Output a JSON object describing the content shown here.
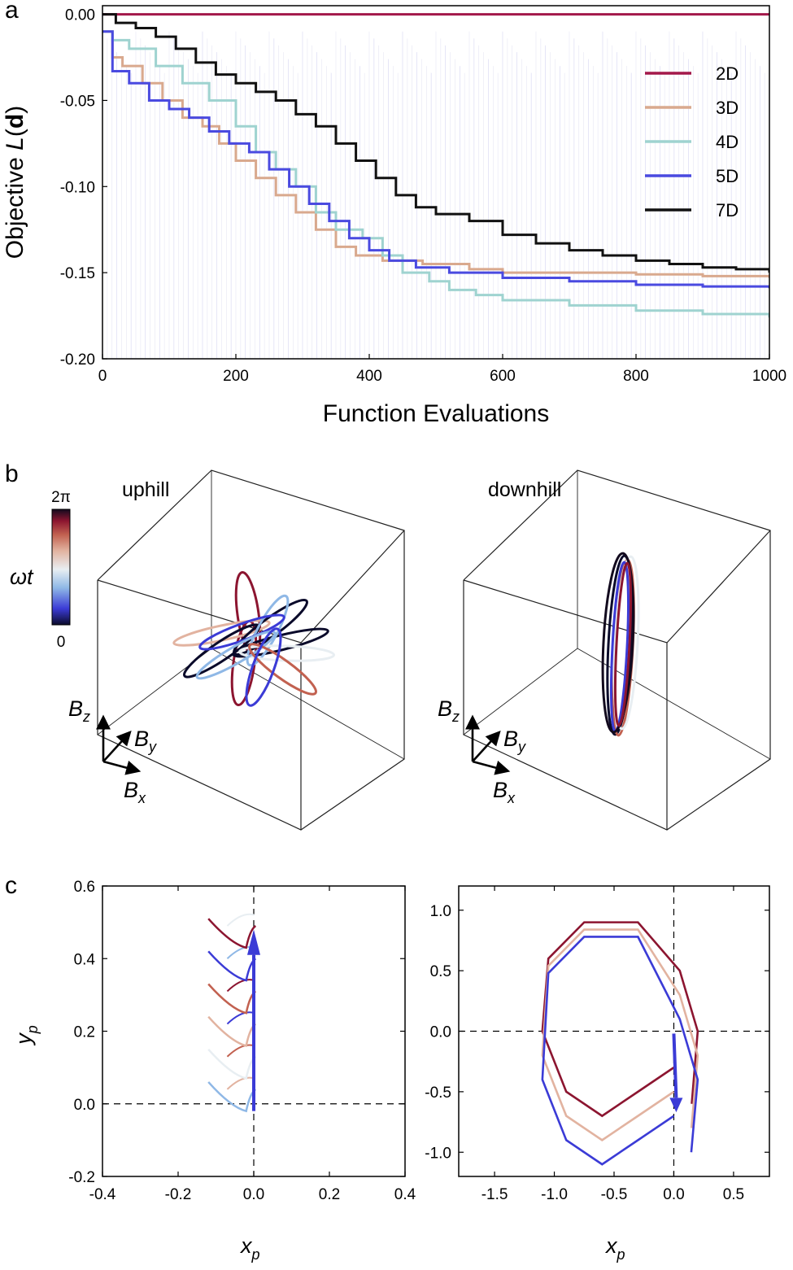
{
  "panel_labels": [
    "a",
    "b",
    "c"
  ],
  "chart_data": [
    {
      "id": "a",
      "type": "line",
      "xlabel": "Function Evaluations",
      "ylabel_main": "Objective ",
      "ylabel_var": "L",
      "ylabel_arg": "d",
      "xlim": [
        0,
        1000
      ],
      "ylim": [
        -0.2,
        0.005
      ],
      "xticks": [
        0,
        200,
        400,
        600,
        800,
        1000
      ],
      "yticks": [
        0.0,
        -0.05,
        -0.1,
        -0.15,
        -0.2
      ],
      "xtick_labels": [
        "0",
        "200",
        "400",
        "600",
        "800",
        "1000"
      ],
      "ytick_labels": [
        "0.00",
        "-0.05",
        "-0.10",
        "-0.15",
        "-0.20"
      ],
      "legend_position": "top-right",
      "series": [
        {
          "name": "2D",
          "color": "#a3184a",
          "points": [
            [
              0,
              0.0
            ],
            [
              1000,
              0.0
            ]
          ]
        },
        {
          "name": "3D",
          "color": "#d9a98e",
          "points": [
            [
              0,
              -0.01
            ],
            [
              15,
              -0.025
            ],
            [
              30,
              -0.03
            ],
            [
              60,
              -0.04
            ],
            [
              90,
              -0.05
            ],
            [
              120,
              -0.06
            ],
            [
              150,
              -0.065
            ],
            [
              175,
              -0.075
            ],
            [
              200,
              -0.085
            ],
            [
              230,
              -0.095
            ],
            [
              260,
              -0.105
            ],
            [
              290,
              -0.115
            ],
            [
              320,
              -0.125
            ],
            [
              350,
              -0.135
            ],
            [
              380,
              -0.14
            ],
            [
              420,
              -0.143
            ],
            [
              480,
              -0.145
            ],
            [
              550,
              -0.148
            ],
            [
              600,
              -0.15
            ],
            [
              700,
              -0.15
            ],
            [
              800,
              -0.151
            ],
            [
              900,
              -0.152
            ],
            [
              1000,
              -0.153
            ]
          ]
        },
        {
          "name": "4D",
          "color": "#9fd3d0",
          "points": [
            [
              0,
              -0.01
            ],
            [
              15,
              -0.015
            ],
            [
              40,
              -0.02
            ],
            [
              80,
              -0.03
            ],
            [
              120,
              -0.04
            ],
            [
              160,
              -0.05
            ],
            [
              200,
              -0.065
            ],
            [
              230,
              -0.08
            ],
            [
              260,
              -0.09
            ],
            [
              290,
              -0.1
            ],
            [
              320,
              -0.115
            ],
            [
              350,
              -0.125
            ],
            [
              390,
              -0.13
            ],
            [
              420,
              -0.14
            ],
            [
              450,
              -0.15
            ],
            [
              490,
              -0.155
            ],
            [
              520,
              -0.16
            ],
            [
              560,
              -0.163
            ],
            [
              600,
              -0.166
            ],
            [
              700,
              -0.169
            ],
            [
              800,
              -0.172
            ],
            [
              900,
              -0.174
            ],
            [
              1000,
              -0.176
            ]
          ]
        },
        {
          "name": "5D",
          "color": "#4a4ae0",
          "points": [
            [
              0,
              -0.01
            ],
            [
              15,
              -0.033
            ],
            [
              40,
              -0.04
            ],
            [
              70,
              -0.05
            ],
            [
              100,
              -0.055
            ],
            [
              130,
              -0.06
            ],
            [
              160,
              -0.068
            ],
            [
              190,
              -0.075
            ],
            [
              220,
              -0.08
            ],
            [
              250,
              -0.09
            ],
            [
              280,
              -0.1
            ],
            [
              310,
              -0.11
            ],
            [
              340,
              -0.12
            ],
            [
              370,
              -0.13
            ],
            [
              400,
              -0.137
            ],
            [
              430,
              -0.143
            ],
            [
              470,
              -0.147
            ],
            [
              520,
              -0.15
            ],
            [
              600,
              -0.153
            ],
            [
              700,
              -0.155
            ],
            [
              800,
              -0.157
            ],
            [
              900,
              -0.158
            ],
            [
              1000,
              -0.159
            ]
          ]
        },
        {
          "name": "7D",
          "color": "#111111",
          "points": [
            [
              0,
              0.0
            ],
            [
              20,
              -0.005
            ],
            [
              50,
              -0.008
            ],
            [
              80,
              -0.013
            ],
            [
              110,
              -0.02
            ],
            [
              140,
              -0.028
            ],
            [
              170,
              -0.035
            ],
            [
              200,
              -0.04
            ],
            [
              230,
              -0.045
            ],
            [
              260,
              -0.05
            ],
            [
              290,
              -0.058
            ],
            [
              320,
              -0.065
            ],
            [
              350,
              -0.075
            ],
            [
              380,
              -0.085
            ],
            [
              410,
              -0.095
            ],
            [
              440,
              -0.105
            ],
            [
              470,
              -0.112
            ],
            [
              500,
              -0.116
            ],
            [
              550,
              -0.12
            ],
            [
              600,
              -0.128
            ],
            [
              650,
              -0.133
            ],
            [
              700,
              -0.137
            ],
            [
              750,
              -0.14
            ],
            [
              800,
              -0.143
            ],
            [
              850,
              -0.145
            ],
            [
              900,
              -0.147
            ],
            [
              950,
              -0.148
            ],
            [
              1000,
              -0.15
            ]
          ]
        }
      ]
    },
    {
      "id": "b",
      "type": "3d-trajectory",
      "titles": [
        "uphill",
        "downhill"
      ],
      "colorbar_label": "ωt",
      "colorbar_range": [
        "0",
        "2π"
      ],
      "colorbar_colors": [
        "#0a0a2a",
        "#3b3bd6",
        "#8fb8e6",
        "#e8eef2",
        "#e2b3a0",
        "#c26150",
        "#8c1530",
        "#120a1e"
      ],
      "axis_names": [
        "B",
        "B",
        "B"
      ],
      "axis_subscripts": [
        "x",
        "y",
        "z"
      ]
    },
    {
      "id": "c-left",
      "type": "line",
      "xlabel": "x",
      "xlabel_sub": "p",
      "ylabel": "y",
      "ylabel_sub": "p",
      "xlim": [
        -0.4,
        0.4
      ],
      "ylim": [
        -0.2,
        0.6
      ],
      "xticks": [
        -0.4,
        -0.2,
        0.0,
        0.2,
        0.4
      ],
      "yticks": [
        -0.2,
        0.0,
        0.2,
        0.4,
        0.6
      ],
      "xtick_labels": [
        "-0.4",
        "-0.2",
        "0.0",
        "0.2",
        "0.4"
      ],
      "ytick_labels": [
        "-0.2",
        "0.0",
        "0.2",
        "0.4",
        "0.6"
      ]
    },
    {
      "id": "c-right",
      "type": "line",
      "xlabel": "x",
      "xlabel_sub": "p",
      "xlim": [
        -1.8,
        0.8
      ],
      "ylim": [
        -1.2,
        1.2
      ],
      "xticks": [
        -1.5,
        -1.0,
        -0.5,
        0.0,
        0.5
      ],
      "yticks": [
        1.0,
        0.5,
        0.0,
        -0.5,
        -1.0
      ],
      "xtick_labels": [
        "-1.5",
        "-1.0",
        "-0.5",
        "0.0",
        "0.5"
      ],
      "ytick_labels": [
        "1.0",
        "0.5",
        "0.0",
        "-0.5",
        "-1.0"
      ]
    }
  ]
}
